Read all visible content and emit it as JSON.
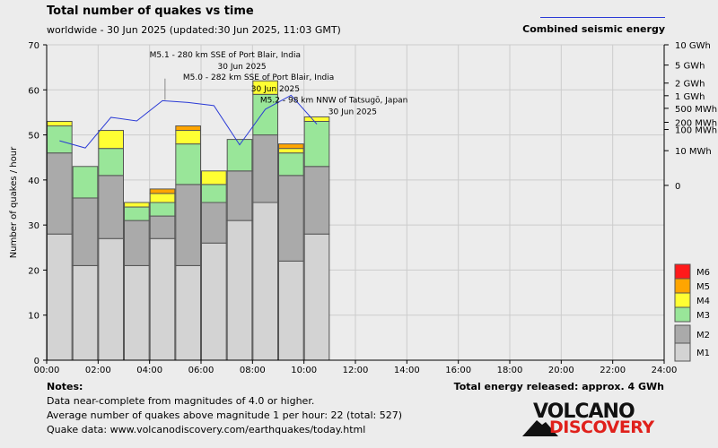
{
  "header": {
    "title": "Total number of quakes vs time",
    "subtitle": "worldwide - 30 Jun 2025 (updated:30 Jun 2025, 11:03 GMT)",
    "energy_series_label": "Combined seismic energy"
  },
  "colors": {
    "M1": "#d3d3d3",
    "M2": "#aaaaaa",
    "M3": "#99e699",
    "M4": "#ffff33",
    "M5": "#ffa500",
    "M6": "#ff1a1a",
    "energy_line": "#2b3bd6",
    "grid": "#cccccc"
  },
  "chart_data": {
    "type": "bar",
    "stacked": true,
    "ylabel": "Number of quakes / hour",
    "ylim": [
      0,
      70
    ],
    "y_ticks": [
      0,
      10,
      20,
      30,
      40,
      50,
      60,
      70
    ],
    "xlim_hours": [
      0,
      24
    ],
    "x_tick_labels": [
      "00:00",
      "02:00",
      "04:00",
      "06:00",
      "08:00",
      "10:00",
      "12:00",
      "14:00",
      "16:00",
      "18:00",
      "20:00",
      "22:00",
      "24:00"
    ],
    "grid": true,
    "bar_width_hours": 1,
    "bars": [
      {
        "hour": 0,
        "M1": 28,
        "M2": 18,
        "M3": 6,
        "M4": 1,
        "M5": 0,
        "M6": 0
      },
      {
        "hour": 1,
        "M1": 21,
        "M2": 15,
        "M3": 7,
        "M4": 0,
        "M5": 0,
        "M6": 0
      },
      {
        "hour": 2,
        "M1": 27,
        "M2": 14,
        "M3": 6,
        "M4": 4,
        "M5": 0,
        "M6": 0
      },
      {
        "hour": 3,
        "M1": 21,
        "M2": 10,
        "M3": 3,
        "M4": 1,
        "M5": 0,
        "M6": 0
      },
      {
        "hour": 4,
        "M1": 27,
        "M2": 5,
        "M3": 3,
        "M4": 2,
        "M5": 1,
        "M6": 0
      },
      {
        "hour": 5,
        "M1": 21,
        "M2": 18,
        "M3": 9,
        "M4": 3,
        "M5": 1,
        "M6": 0
      },
      {
        "hour": 6,
        "M1": 26,
        "M2": 9,
        "M3": 4,
        "M4": 3,
        "M5": 0,
        "M6": 0
      },
      {
        "hour": 7,
        "M1": 31,
        "M2": 11,
        "M3": 7,
        "M4": 0,
        "M5": 0,
        "M6": 0
      },
      {
        "hour": 8,
        "M1": 35,
        "M2": 15,
        "M3": 9,
        "M4": 3,
        "M5": 0,
        "M6": 0
      },
      {
        "hour": 9,
        "M1": 22,
        "M2": 19,
        "M3": 5,
        "M4": 1,
        "M5": 1,
        "M6": 0
      },
      {
        "hour": 10,
        "M1": 28,
        "M2": 15,
        "M3": 10,
        "M4": 1,
        "M5": 0,
        "M6": 0
      }
    ],
    "magnitude_legend": [
      "M6",
      "M5",
      "M4",
      "M3",
      "M2",
      "M1"
    ],
    "energy_axis": {
      "labels": [
        "10 GWh",
        "5 GWh",
        "2 GWh",
        "1 GWh",
        "500 MWh",
        "200 MWh",
        "100 MWh",
        "10 MWh",
        "0"
      ],
      "label_y_values": [
        70,
        65.5,
        61.5,
        58.7,
        55.9,
        52.8,
        51.2,
        46.5,
        38.8
      ]
    },
    "energy_series": {
      "name": "Combined seismic energy",
      "hours": [
        0.5,
        1.5,
        2.5,
        3.5,
        4.5,
        5.5,
        6.5,
        7.5,
        8.5,
        9.5,
        10.5
      ],
      "y_plot": [
        48.7,
        47.1,
        53.9,
        53.1,
        57.6,
        57.2,
        56.5,
        47.8,
        55.7,
        58.8,
        52.4
      ]
    },
    "annotations": [
      {
        "line1": "M5.1 - 280 km SSE of Port Blair, India",
        "line2": "30 Jun 2025",
        "x_hour": 4.0,
        "y": 67.2
      },
      {
        "line1": "M5.0 - 282 km SSE of Port Blair, India",
        "line2": "30 Jun 2025",
        "x_hour": 5.3,
        "y": 62.2
      },
      {
        "line1": "M5.2 - 98 km NNW of Tatsugō, Japan",
        "line2": "30 Jun 2025",
        "x_hour": 8.3,
        "y": 57.2
      }
    ]
  },
  "notes": {
    "title": "Notes:",
    "lines": [
      "Data near-complete from magnitudes of 4.0 or higher.",
      "Average number of quakes above magnitude 1 per hour: 22 (total: 527)",
      "Quake data: www.volcanodiscovery.com/earthquakes/today.html"
    ],
    "total_energy": "Total energy released: approx. 4 GWh"
  },
  "logo": {
    "top": "VOLCANO",
    "bottom": "DISCOVERY"
  }
}
